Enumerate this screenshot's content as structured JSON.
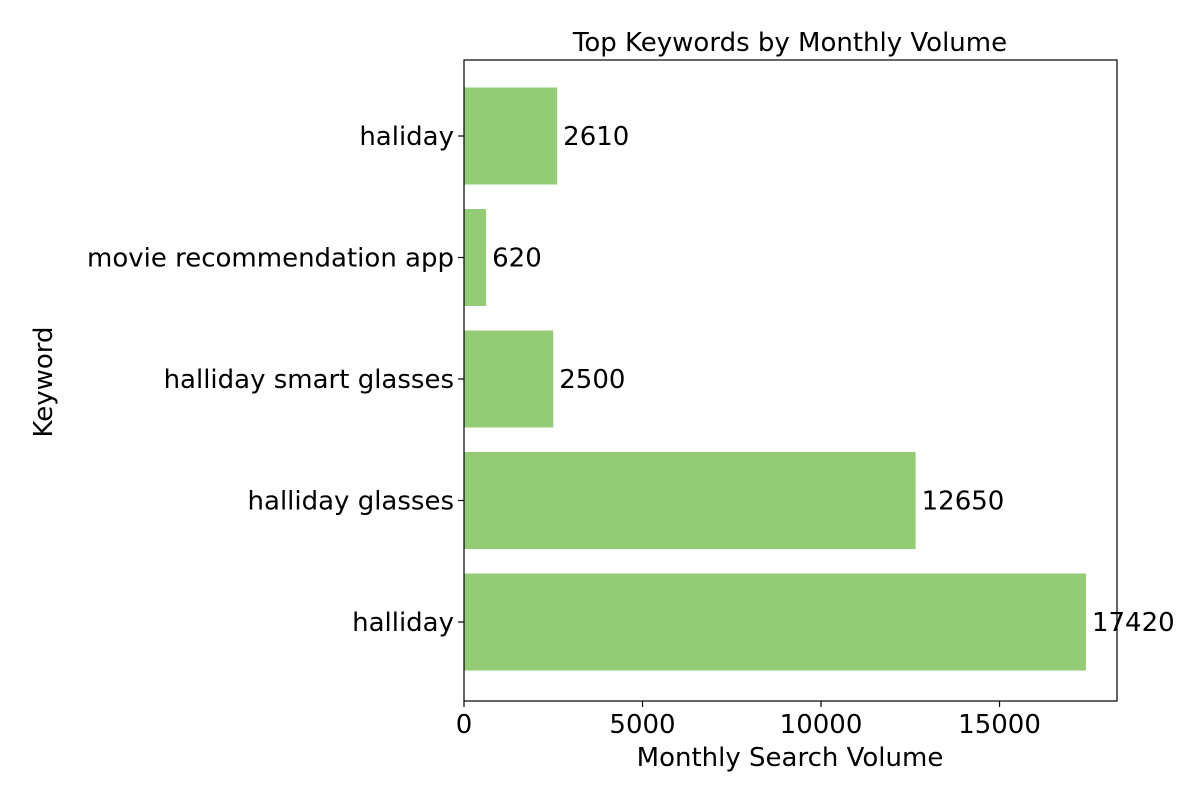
{
  "chart_data": {
    "type": "bar",
    "orientation": "horizontal",
    "title": "Top Keywords by Monthly Volume",
    "xlabel": "Monthly Search Volume",
    "ylabel": "Keyword",
    "categories": [
      "halliday",
      "halliday glasses",
      "halliday smart glasses",
      "movie recommendation app",
      "haliday"
    ],
    "values": [
      17420,
      12650,
      2500,
      620,
      2610
    ],
    "xlim": [
      0,
      18290
    ],
    "xticks": [
      0,
      5000,
      10000,
      15000
    ],
    "bar_color": "#93cc75",
    "grid": false,
    "legend": "none"
  }
}
